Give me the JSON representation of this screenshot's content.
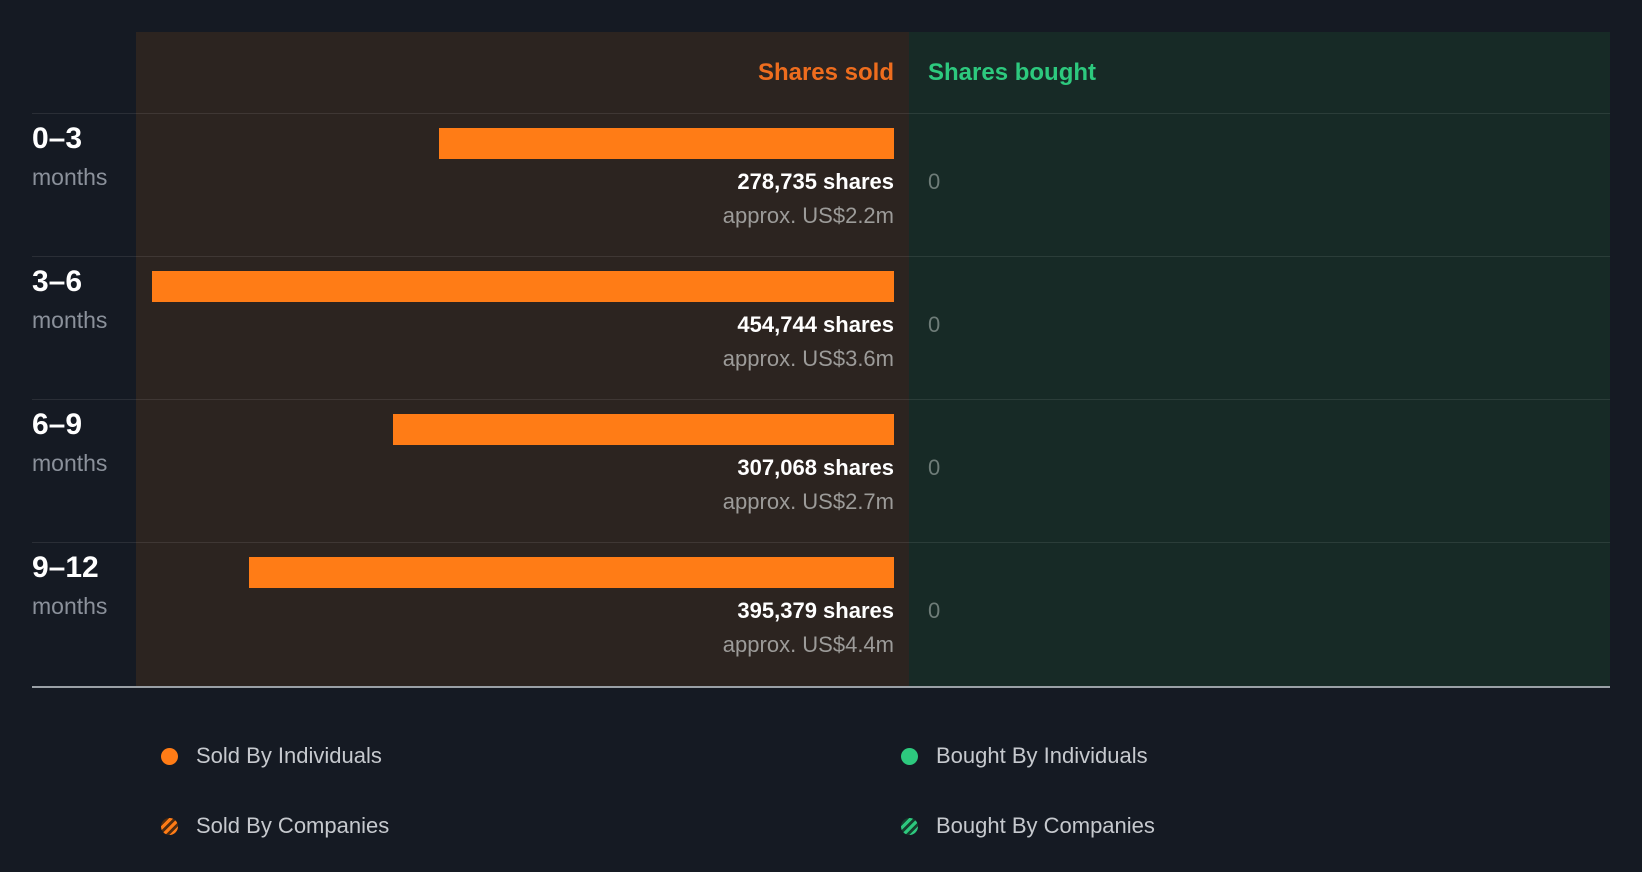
{
  "colors": {
    "page_bg": "#151a23",
    "sold_col_bg": "#2c2420",
    "bought_col_bg": "#172a26",
    "bar_orange": "#ff7c16",
    "sold_header_text": "#ee6d1e",
    "bought_header_text": "#2dc97e",
    "unit_text": "#8b919b",
    "approx_text": "#9c9b99",
    "zero_text": "#6e7c78",
    "legend_text": "#c6c9ce",
    "divider": "rgba(255,255,255,0.09)",
    "axis_line": "#9aa0a6",
    "stripe_dark_orange": "#512d10",
    "stripe_dark_green": "#16402f"
  },
  "chart_data": {
    "type": "bar",
    "orientation": "horizontal",
    "legend_position": "bottom",
    "grid": "row-dividers",
    "columns": {
      "sold_header": "Shares sold",
      "bought_header": "Shares bought"
    },
    "x_max_shares": 454744,
    "categories": [
      "0–3 months",
      "3–6 months",
      "6–9 months",
      "9–12 months"
    ],
    "series": [
      {
        "name": "Shares sold",
        "values": [
          278735,
          454744,
          307068,
          395379
        ]
      },
      {
        "name": "Shares bought",
        "values": [
          0,
          0,
          0,
          0
        ]
      }
    ],
    "rows": [
      {
        "period": "0–3",
        "unit": "months",
        "sold_shares": 278735,
        "sold_shares_text": "278,735 shares",
        "sold_value_usd_m": 2.2,
        "sold_value_text": "approx. US$2.2m",
        "bought_shares": 0,
        "bought_text": "0"
      },
      {
        "period": "3–6",
        "unit": "months",
        "sold_shares": 454744,
        "sold_shares_text": "454,744 shares",
        "sold_value_usd_m": 3.6,
        "sold_value_text": "approx. US$3.6m",
        "bought_shares": 0,
        "bought_text": "0"
      },
      {
        "period": "6–9",
        "unit": "months",
        "sold_shares": 307068,
        "sold_shares_text": "307,068 shares",
        "sold_value_usd_m": 2.7,
        "sold_value_text": "approx. US$2.7m",
        "bought_shares": 0,
        "bought_text": "0"
      },
      {
        "period": "9–12",
        "unit": "months",
        "sold_shares": 395379,
        "sold_shares_text": "395,379 shares",
        "sold_value_usd_m": 4.4,
        "sold_value_text": "approx. US$4.4m",
        "bought_shares": 0,
        "bought_text": "0"
      }
    ]
  },
  "legend": {
    "sold_individuals": "Sold By Individuals",
    "sold_companies": "Sold By Companies",
    "bought_individuals": "Bought By Individuals",
    "bought_companies": "Bought By Companies"
  }
}
